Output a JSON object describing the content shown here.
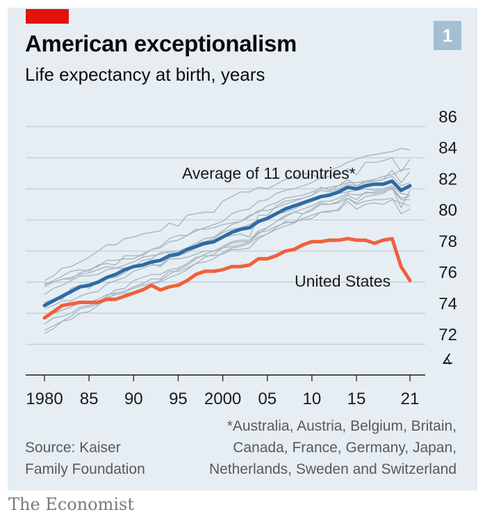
{
  "header": {
    "title": "American exceptionalism",
    "subtitle": "Life expectancy at birth, years",
    "chart_number": "1"
  },
  "source": {
    "line1": "Source: Kaiser",
    "line2": "Family Foundation"
  },
  "footnote": {
    "line1": "*Australia, Austria, Belgium, Britain,",
    "line2": "Canada, France, Germany, Japan,",
    "line3": "Netherlands, Sweden and Switzerland"
  },
  "brand": "The Economist",
  "colors": {
    "background": "#e6eef4",
    "average": "#2e6aa4",
    "us": "#f0603c",
    "countries": "#a8b6c2",
    "grid": "#c2ccd6",
    "accent": "#e3120b"
  },
  "chart_data": {
    "type": "line",
    "title": "American exceptionalism",
    "subtitle": "Life expectancy at birth, years",
    "xlabel": "",
    "ylabel": "",
    "xlim": [
      1980,
      2021
    ],
    "ylim": [
      72,
      86
    ],
    "y_ticks": [
      72,
      74,
      76,
      78,
      80,
      82,
      84,
      86
    ],
    "x_ticks": [
      1980,
      1985,
      1990,
      1995,
      2000,
      2005,
      2010,
      2015,
      2021
    ],
    "x_tick_labels": [
      "1980",
      "85",
      "90",
      "95",
      "2000",
      "05",
      "10",
      "15",
      "21"
    ],
    "axis_break_symbol": "∡",
    "x": [
      1980,
      1981,
      1982,
      1983,
      1984,
      1985,
      1986,
      1987,
      1988,
      1989,
      1990,
      1991,
      1992,
      1993,
      1994,
      1995,
      1996,
      1997,
      1998,
      1999,
      2000,
      2001,
      2002,
      2003,
      2004,
      2005,
      2006,
      2007,
      2008,
      2009,
      2010,
      2011,
      2012,
      2013,
      2014,
      2015,
      2016,
      2017,
      2018,
      2019,
      2020,
      2021
    ],
    "series": [
      {
        "name": "Average of 11 countries*",
        "label": "Average of 11 countries*",
        "role": "average",
        "values": [
          74.5,
          74.8,
          75.1,
          75.4,
          75.7,
          75.8,
          76.0,
          76.3,
          76.5,
          76.8,
          77.0,
          77.1,
          77.3,
          77.4,
          77.7,
          77.8,
          78.1,
          78.3,
          78.5,
          78.6,
          78.9,
          79.2,
          79.4,
          79.5,
          79.9,
          80.1,
          80.4,
          80.7,
          80.9,
          81.1,
          81.3,
          81.5,
          81.6,
          81.8,
          82.1,
          82.0,
          82.2,
          82.3,
          82.3,
          82.5,
          81.9,
          82.2
        ]
      },
      {
        "name": "United States",
        "label": "United States",
        "role": "us",
        "values": [
          73.7,
          74.1,
          74.5,
          74.6,
          74.7,
          74.7,
          74.7,
          74.9,
          74.9,
          75.1,
          75.3,
          75.5,
          75.8,
          75.5,
          75.7,
          75.8,
          76.1,
          76.5,
          76.7,
          76.7,
          76.8,
          77.0,
          77.0,
          77.1,
          77.5,
          77.5,
          77.7,
          78.0,
          78.1,
          78.4,
          78.6,
          78.6,
          78.7,
          78.7,
          78.8,
          78.7,
          78.7,
          78.5,
          78.7,
          78.8,
          77.0,
          76.1
        ]
      },
      {
        "name": "Japan",
        "role": "country",
        "values": [
          76.1,
          76.4,
          76.9,
          77.0,
          77.3,
          77.6,
          78.0,
          78.4,
          78.4,
          78.8,
          78.9,
          79.1,
          79.2,
          79.3,
          79.8,
          79.6,
          80.3,
          80.4,
          80.5,
          80.5,
          81.2,
          81.5,
          81.8,
          81.8,
          82.1,
          82.0,
          82.3,
          82.6,
          82.7,
          83.0,
          82.9,
          82.7,
          83.2,
          83.4,
          83.7,
          83.9,
          84.1,
          84.2,
          84.3,
          84.4,
          84.6,
          84.5
        ]
      },
      {
        "name": "Switzerland",
        "role": "country",
        "values": [
          75.7,
          76.0,
          76.2,
          76.2,
          76.6,
          76.8,
          77.0,
          77.4,
          77.4,
          77.5,
          77.5,
          77.8,
          78.1,
          78.2,
          78.6,
          78.7,
          79.0,
          79.3,
          79.5,
          79.7,
          79.9,
          80.4,
          80.6,
          80.7,
          81.2,
          81.3,
          81.7,
          81.9,
          82.0,
          82.2,
          82.4,
          82.7,
          82.8,
          82.9,
          83.3,
          82.9,
          83.7,
          83.7,
          83.8,
          84.0,
          83.1,
          83.9
        ]
      },
      {
        "name": "Australia",
        "role": "country",
        "values": [
          74.7,
          74.9,
          74.9,
          75.6,
          75.8,
          75.6,
          76.1,
          76.3,
          76.3,
          76.6,
          77.0,
          77.4,
          77.5,
          77.9,
          77.9,
          77.9,
          78.2,
          78.5,
          78.8,
          78.9,
          79.3,
          79.7,
          79.9,
          80.3,
          80.5,
          80.9,
          81.1,
          81.4,
          81.5,
          81.6,
          81.8,
          82.0,
          82.1,
          82.2,
          82.4,
          82.4,
          82.5,
          82.6,
          82.8,
          82.9,
          83.2,
          83.3
        ]
      },
      {
        "name": "Sweden",
        "role": "country",
        "values": [
          75.8,
          76.1,
          76.4,
          76.7,
          76.8,
          76.7,
          77.1,
          77.2,
          77.1,
          77.7,
          77.7,
          77.7,
          78.1,
          78.3,
          78.8,
          79.0,
          79.0,
          79.4,
          79.4,
          79.5,
          79.7,
          79.8,
          79.9,
          80.2,
          80.6,
          80.6,
          80.8,
          81.0,
          81.2,
          81.4,
          81.6,
          81.9,
          81.8,
          82.0,
          82.3,
          82.2,
          82.4,
          82.5,
          82.6,
          83.2,
          82.4,
          83.1
        ]
      },
      {
        "name": "France",
        "role": "country",
        "values": [
          74.3,
          74.5,
          74.8,
          74.8,
          75.1,
          75.3,
          75.4,
          75.9,
          76.1,
          76.3,
          76.7,
          76.9,
          77.1,
          77.1,
          77.6,
          77.7,
          77.9,
          78.2,
          78.4,
          78.5,
          78.9,
          79.0,
          79.1,
          78.9,
          80.3,
          80.3,
          80.9,
          81.2,
          81.3,
          81.4,
          81.6,
          82.1,
          81.9,
          82.2,
          82.6,
          82.2,
          82.5,
          82.5,
          82.6,
          82.8,
          82.2,
          82.4
        ]
      },
      {
        "name": "Netherlands",
        "role": "country",
        "values": [
          75.9,
          76.0,
          76.2,
          76.3,
          76.5,
          76.6,
          76.8,
          77.0,
          76.9,
          76.9,
          77.0,
          77.1,
          77.2,
          77.0,
          77.5,
          77.5,
          77.6,
          77.8,
          78.0,
          78.0,
          78.2,
          78.3,
          78.4,
          78.6,
          79.1,
          79.5,
          79.9,
          80.3,
          80.5,
          80.7,
          80.9,
          81.2,
          81.2,
          81.4,
          81.7,
          81.6,
          81.7,
          81.8,
          81.9,
          82.1,
          81.4,
          81.5
        ]
      },
      {
        "name": "Austria",
        "role": "country",
        "values": [
          72.7,
          73.0,
          73.5,
          73.6,
          74.0,
          74.1,
          74.5,
          74.9,
          75.3,
          75.4,
          75.6,
          75.8,
          75.9,
          76.1,
          76.5,
          76.8,
          77.1,
          77.5,
          77.8,
          78.0,
          78.3,
          78.6,
          78.7,
          78.7,
          79.3,
          79.5,
          79.9,
          80.2,
          80.5,
          80.4,
          80.7,
          81.1,
          81.0,
          81.2,
          81.6,
          81.3,
          81.8,
          81.7,
          81.8,
          82.0,
          81.3,
          81.3
        ]
      },
      {
        "name": "Britain",
        "role": "country",
        "values": [
          73.7,
          74.0,
          74.2,
          74.4,
          74.7,
          74.7,
          74.9,
          75.2,
          75.3,
          75.4,
          75.7,
          75.9,
          76.2,
          76.2,
          76.7,
          76.7,
          76.9,
          77.2,
          77.3,
          77.5,
          77.9,
          78.2,
          78.3,
          78.5,
          78.9,
          79.1,
          79.4,
          79.6,
          79.8,
          80.4,
          80.6,
          81.0,
          81.0,
          81.1,
          81.4,
          81.0,
          81.2,
          81.3,
          81.3,
          81.4,
          80.4,
          80.7
        ]
      },
      {
        "name": "Belgium",
        "role": "country",
        "values": [
          73.3,
          73.7,
          73.8,
          74.0,
          74.4,
          74.5,
          74.7,
          75.1,
          75.5,
          75.6,
          76.1,
          76.3,
          76.5,
          76.5,
          76.8,
          76.9,
          77.2,
          77.6,
          77.7,
          77.7,
          77.8,
          78.1,
          78.1,
          78.2,
          78.8,
          79.1,
          79.5,
          79.9,
          79.8,
          80.1,
          80.3,
          80.5,
          80.5,
          80.7,
          81.4,
          81.1,
          81.5,
          81.6,
          81.7,
          82.1,
          80.8,
          81.9
        ]
      },
      {
        "name": "Canada",
        "role": "country",
        "values": [
          75.2,
          75.6,
          75.8,
          76.1,
          76.4,
          76.4,
          76.5,
          76.8,
          76.9,
          77.1,
          77.3,
          77.6,
          77.7,
          77.8,
          78.0,
          78.0,
          78.2,
          78.5,
          78.6,
          78.8,
          79.2,
          79.4,
          79.5,
          79.7,
          80.0,
          80.1,
          80.4,
          80.5,
          80.7,
          81.0,
          81.2,
          81.4,
          81.6,
          81.7,
          81.8,
          81.9,
          82.0,
          81.9,
          82.0,
          82.2,
          81.7,
          81.6
        ]
      },
      {
        "name": "Germany",
        "role": "country",
        "values": [
          72.9,
          73.2,
          73.5,
          73.8,
          74.3,
          74.4,
          74.6,
          75.0,
          75.2,
          75.3,
          75.3,
          75.5,
          75.9,
          76.0,
          76.3,
          76.5,
          76.8,
          77.2,
          77.6,
          77.8,
          78.2,
          78.5,
          78.6,
          78.6,
          79.2,
          79.3,
          79.6,
          79.8,
          79.9,
          80.0,
          80.1,
          80.5,
          80.6,
          80.6,
          81.2,
          80.7,
          81.0,
          81.1,
          81.0,
          81.3,
          81.1,
          80.9
        ]
      }
    ]
  }
}
